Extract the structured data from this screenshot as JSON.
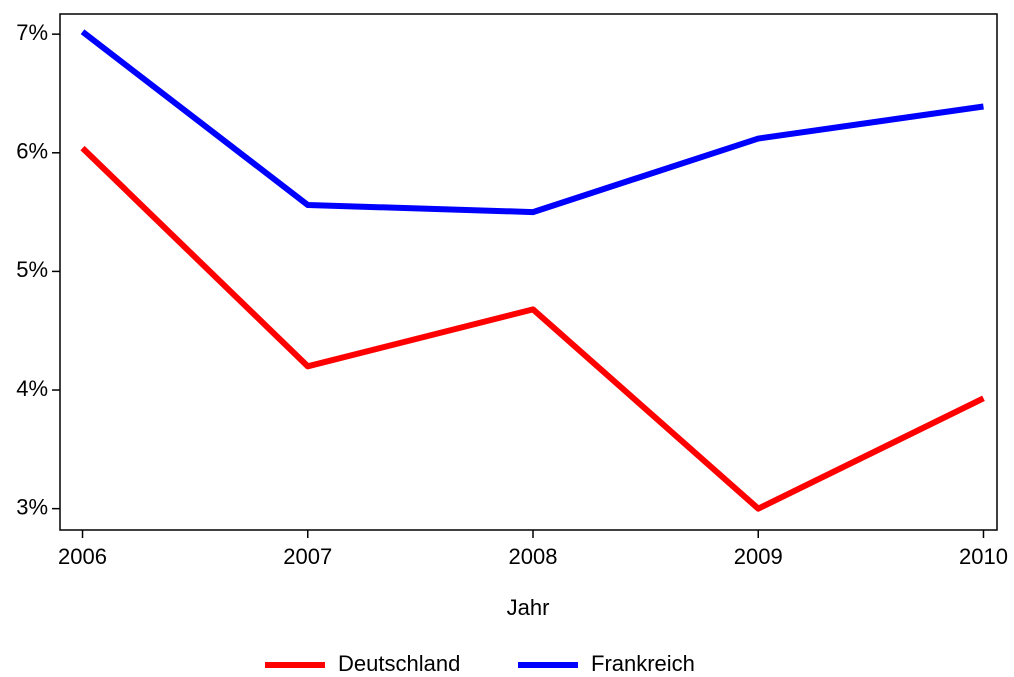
{
  "chart_data": {
    "type": "line",
    "x": [
      2006,
      2007,
      2008,
      2009,
      2010
    ],
    "series": [
      {
        "name": "Deutschland",
        "color": "#ff0000",
        "values": [
          6.04,
          4.2,
          4.68,
          3.0,
          3.93
        ]
      },
      {
        "name": "Frankreich",
        "color": "#0000ff",
        "values": [
          7.02,
          5.56,
          5.5,
          6.12,
          6.39
        ]
      }
    ],
    "xlabel": "Jahr",
    "xlim": [
      2005.9,
      2010.06
    ],
    "xticks": [
      2006,
      2007,
      2008,
      2009,
      2010
    ],
    "ylim": [
      2.82,
      7.17
    ],
    "yticks": [
      {
        "value": 3,
        "label": "3%"
      },
      {
        "value": 4,
        "label": "4%"
      },
      {
        "value": 5,
        "label": "5%"
      },
      {
        "value": 6,
        "label": "6%"
      },
      {
        "value": 7,
        "label": "7%"
      }
    ],
    "legend": "bottom"
  }
}
